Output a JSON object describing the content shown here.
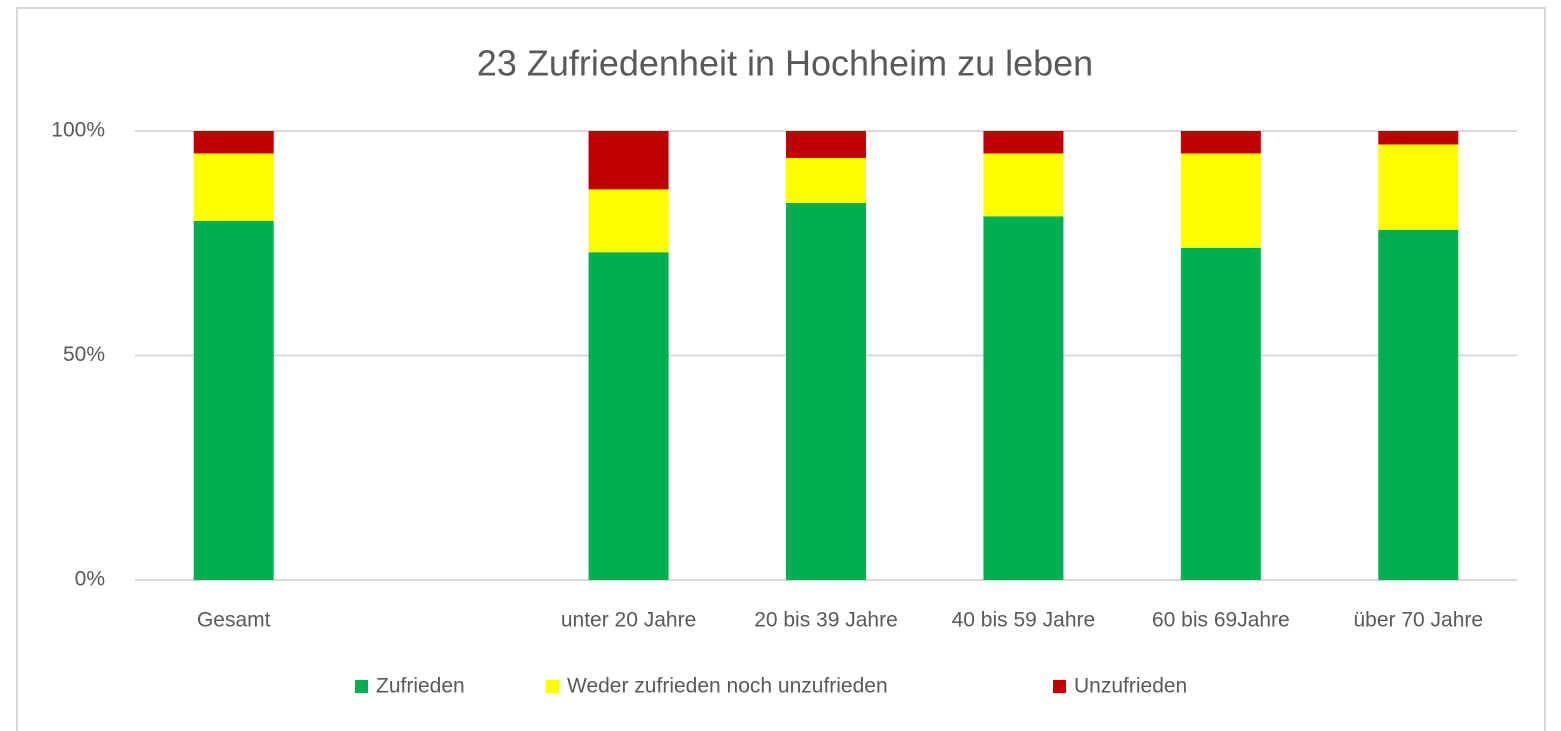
{
  "chart_data": {
    "type": "stacked_bar",
    "title": "23 Zufriedenheit in Hochheim zu leben",
    "categories": [
      "Gesamt",
      null,
      "unter 20 Jahre",
      "20 bis 39 Jahre",
      "40 bis 59 Jahre",
      "60 bis 69Jahre",
      "über 70 Jahre"
    ],
    "series": [
      {
        "name": "Zufrieden",
        "color": "#00b050",
        "values": [
          80,
          null,
          73,
          84,
          81,
          74,
          78
        ]
      },
      {
        "name": "Weder zufrieden noch unzufrieden",
        "color": "#ffff00",
        "values": [
          15,
          null,
          14,
          10,
          14,
          21,
          19
        ]
      },
      {
        "name": "Unzufrieden",
        "color": "#c00000",
        "values": [
          5,
          null,
          13,
          6,
          5,
          5,
          3
        ]
      }
    ],
    "ylim": [
      0,
      100
    ],
    "yticks": [
      {
        "value": 0,
        "label": "0%"
      },
      {
        "value": 50,
        "label": "50%"
      },
      {
        "value": 100,
        "label": "100%"
      }
    ],
    "grid": true,
    "legend": "bottom"
  }
}
